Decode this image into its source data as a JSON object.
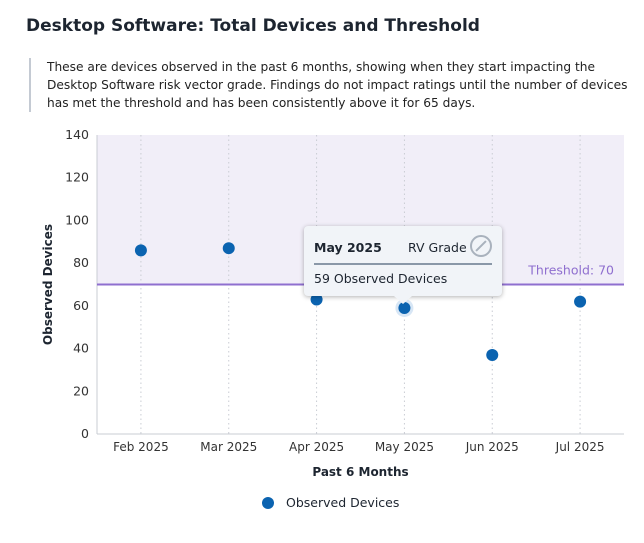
{
  "title": "Desktop Software: Total Devices and Threshold",
  "description": "These are devices observed in the past 6 months, showing when they start impacting the Desktop Software risk vector grade. Findings do not impact ratings until the number of devices has met the threshold and has been consistently above it for 65 days.",
  "tooltip": {
    "month": "May 2025",
    "grade_label": "RV Grade",
    "grade_icon": "not-applicable-icon",
    "value_text": "59 Observed Devices"
  },
  "colors": {
    "point": "#0b63b0",
    "threshold": "#8f6fcf",
    "band": "#f1eef8"
  },
  "chart_data": {
    "type": "scatter",
    "categories": [
      "Feb 2025",
      "Mar 2025",
      "Apr 2025",
      "May 2025",
      "Jun 2025",
      "Jul 2025"
    ],
    "series": [
      {
        "name": "Observed Devices",
        "values": [
          86,
          87,
          63,
          59,
          37,
          62
        ]
      }
    ],
    "threshold": {
      "value": 70,
      "label": "Threshold: 70"
    },
    "xlabel": "Past 6 Months",
    "ylabel": "Observed Devices",
    "ylim": [
      0,
      140
    ],
    "yticks": [
      0,
      20,
      40,
      60,
      80,
      100,
      120,
      140
    ],
    "legend": "bottom",
    "highlighted": "May 2025"
  }
}
